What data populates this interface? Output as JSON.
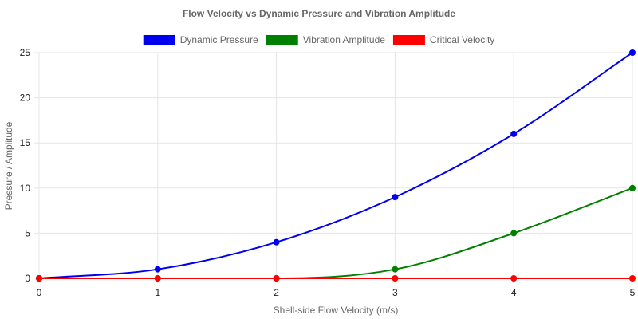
{
  "chart_data": {
    "type": "line",
    "title": "Flow Velocity vs Dynamic Pressure and Vibration Amplitude",
    "xlabel": "Shell-side Flow Velocity (m/s)",
    "ylabel": "Pressure / Amplitude",
    "x": [
      0,
      1,
      2,
      3,
      4,
      5
    ],
    "x_ticks": [
      "0",
      "1",
      "2",
      "3",
      "4",
      "5"
    ],
    "xlim": [
      0,
      5
    ],
    "ylim": [
      0,
      25
    ],
    "y_ticks": [
      0,
      5,
      10,
      15,
      20,
      25
    ],
    "grid": true,
    "legend_position": "top",
    "series": [
      {
        "name": "Dynamic Pressure",
        "color": "#0000ee",
        "values": [
          0,
          1,
          4,
          9,
          16,
          25
        ]
      },
      {
        "name": "Vibration Amplitude",
        "color": "#008000",
        "values": [
          0,
          0,
          0,
          1,
          5,
          10
        ]
      },
      {
        "name": "Critical Velocity",
        "color": "#ff0000",
        "values": [
          0,
          0,
          0,
          0,
          0,
          0
        ]
      }
    ]
  }
}
